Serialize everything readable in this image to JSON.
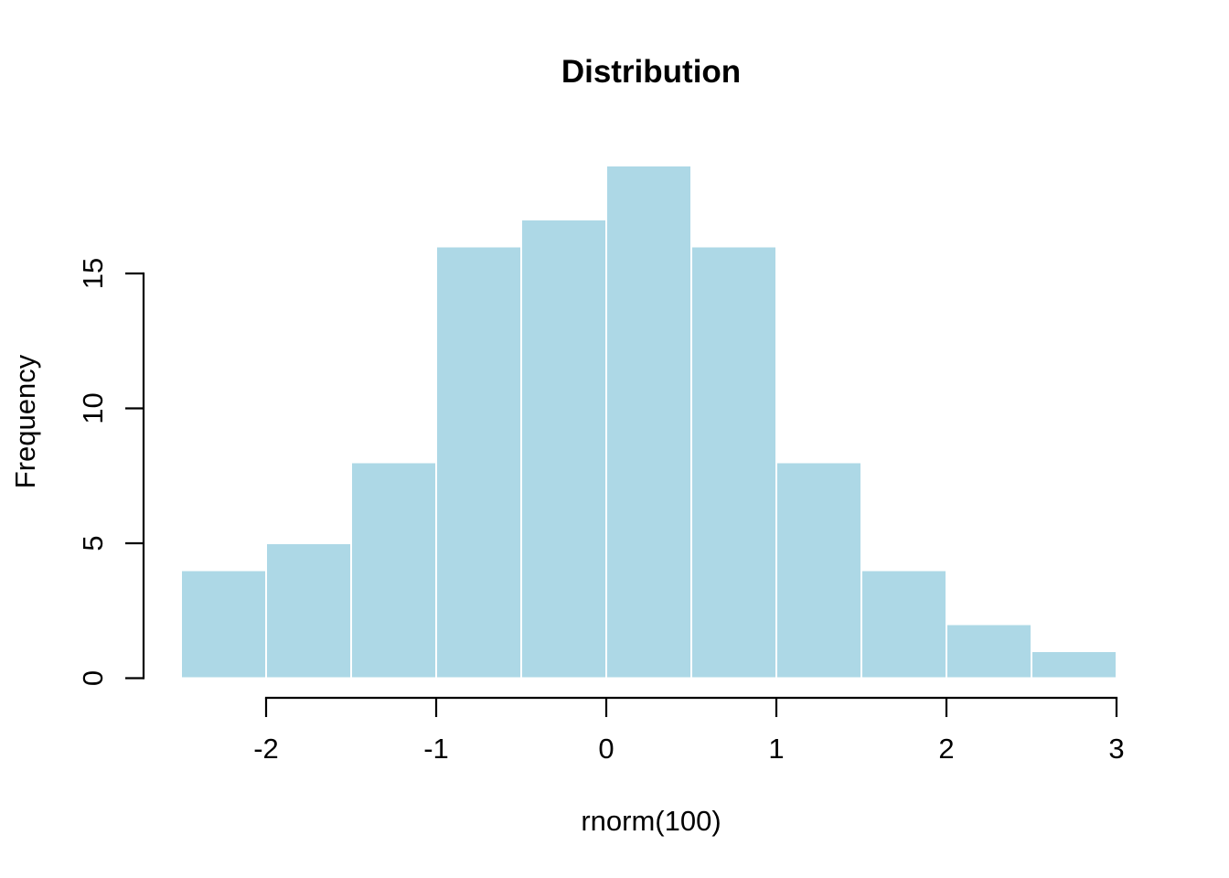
{
  "chart_data": {
    "type": "bar",
    "subtype": "histogram",
    "title": "Distribution",
    "xlabel": "rnorm(100)",
    "ylabel": "Frequency",
    "bin_edges": [
      -2.5,
      -2.0,
      -1.5,
      -1.0,
      -0.5,
      0.0,
      0.5,
      1.0,
      1.5,
      2.0,
      2.5,
      3.0
    ],
    "counts": [
      4,
      5,
      8,
      16,
      17,
      19,
      16,
      8,
      4,
      2,
      1
    ],
    "total_observations": 100,
    "x_ticks": [
      -2,
      -1,
      0,
      1,
      2,
      3
    ],
    "x_tick_labels": [
      "-2",
      "-1",
      "0",
      "1",
      "2",
      "3"
    ],
    "y_ticks": [
      0,
      5,
      10,
      15
    ],
    "y_tick_labels": [
      "0",
      "5",
      "10",
      "15"
    ],
    "xlim": [
      -2.5,
      3.0
    ],
    "ylim": [
      0,
      19
    ],
    "grid": false,
    "legend_position": "none",
    "colors": {
      "bar_fill": "#ADD8E6",
      "bar_border": "#FFFFFF",
      "axis": "#000000",
      "text": "#000000",
      "background": "#FFFFFF"
    }
  }
}
